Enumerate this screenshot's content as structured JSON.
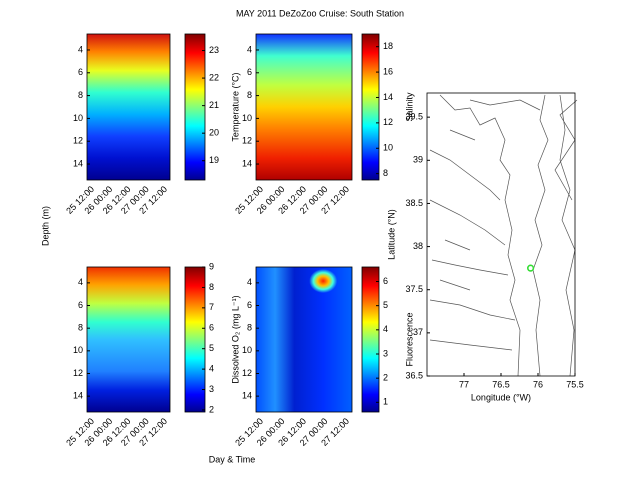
{
  "chart_data": {
    "type": "contour-grid",
    "title": "MAY 2011 DeZoZoo Cruise: South Station",
    "xlabel": "Day & Time",
    "ylabel": "Depth (m)",
    "panels": [
      {
        "type": "contour",
        "colorbar_label": "Temperature (°C)",
        "ylim": [
          2.6,
          15.4
        ],
        "yticks": [
          4,
          6,
          8,
          10,
          12,
          14
        ],
        "xticks": [
          "25 12:00",
          "26 00:00",
          "26 12:00",
          "27 00:00",
          "27 12:00"
        ],
        "clim": [
          18.3,
          23.6
        ],
        "cticks": [
          19,
          20,
          21,
          22,
          23
        ]
      },
      {
        "type": "contour",
        "colorbar_label": "Salinity",
        "ylim": [
          2.6,
          15.4
        ],
        "yticks": [
          4,
          6,
          8,
          10,
          12,
          14
        ],
        "xticks": [
          "25 12:00",
          "26 00:00",
          "26 12:00",
          "27 00:00",
          "27 12:00"
        ],
        "clim": [
          7.5,
          19
        ],
        "cticks": [
          8,
          10,
          12,
          14,
          16,
          18
        ]
      },
      {
        "type": "contour",
        "colorbar_label": "Dissolved O₂ (mg L⁻¹)",
        "ylim": [
          2.6,
          15.4
        ],
        "yticks": [
          4,
          6,
          8,
          10,
          12,
          14
        ],
        "xticks": [
          "25 12:00",
          "26 00:00",
          "26 12:00",
          "27 00:00",
          "27 12:00"
        ],
        "clim": [
          1.9,
          9
        ],
        "cticks": [
          2,
          3,
          4,
          5,
          6,
          7,
          8,
          9
        ]
      },
      {
        "type": "contour",
        "colorbar_label": "Fluorescence",
        "ylim": [
          2.6,
          15.4
        ],
        "yticks": [
          4,
          6,
          8,
          10,
          12,
          14
        ],
        "xticks": [
          "25 12:00",
          "26 00:00",
          "26 12:00",
          "27 00:00",
          "27 12:00"
        ],
        "clim": [
          0.6,
          6.6
        ],
        "cticks": [
          1,
          2,
          3,
          4,
          5,
          6
        ]
      }
    ],
    "map": {
      "type": "scatter",
      "xlabel": "Longitude (°W)",
      "ylabel": "Latitude (°N)",
      "xlim": [
        77.5,
        75.5
      ],
      "xticks": [
        77,
        76.5,
        76,
        75.5
      ],
      "ylim": [
        36.5,
        39.78
      ],
      "yticks": [
        36.5,
        37,
        37.5,
        38,
        38.5,
        39,
        39.5
      ],
      "x": [
        76.1
      ],
      "y": [
        37.75
      ],
      "color": "#33dd33"
    }
  }
}
